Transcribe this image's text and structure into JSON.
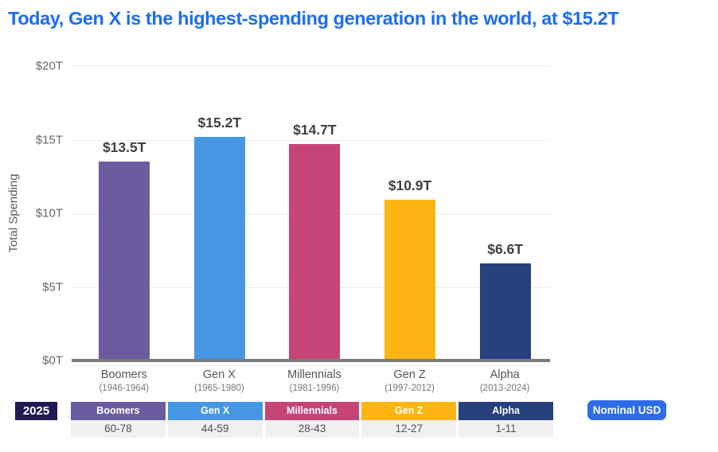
{
  "theme": {
    "title_color": "#1c6df2"
  },
  "chart_data": {
    "type": "bar",
    "title": "Today, Gen X is the highest-spending generation in the world, at $15.2T",
    "categories": [
      "Boomers",
      "Gen X",
      "Millennials",
      "Gen Z",
      "Alpha"
    ],
    "category_sublabels": [
      "(1946-1964)",
      "(1965-1980)",
      "(1981-1996)",
      "(1997-2012)",
      "(2013-2024)"
    ],
    "values": [
      13.5,
      15.2,
      14.7,
      10.9,
      6.6
    ],
    "value_labels": [
      "$13.5T",
      "$15.2T",
      "$14.7T",
      "$10.9T",
      "$6.6T"
    ],
    "colors": [
      "#6b5c9f",
      "#4697e3",
      "#c74478",
      "#fcb513",
      "#26417e"
    ],
    "xlabel": "",
    "ylabel": "Total Spending",
    "ylim": [
      0,
      20
    ],
    "yticks": [
      0,
      5,
      10,
      15,
      20
    ],
    "ytick_labels": [
      "$0T",
      "$5T",
      "$10T",
      "$15T",
      "$20T"
    ],
    "grid": true,
    "legend_position": "none"
  },
  "age_table": {
    "year": "2025",
    "year_badge_bg": "#1f1b52",
    "ages": [
      "60-78",
      "44-59",
      "28-43",
      "12-27",
      "1-11"
    ]
  },
  "unit_badge": {
    "label": "Nominal USD",
    "bg": "#2d6be9"
  }
}
